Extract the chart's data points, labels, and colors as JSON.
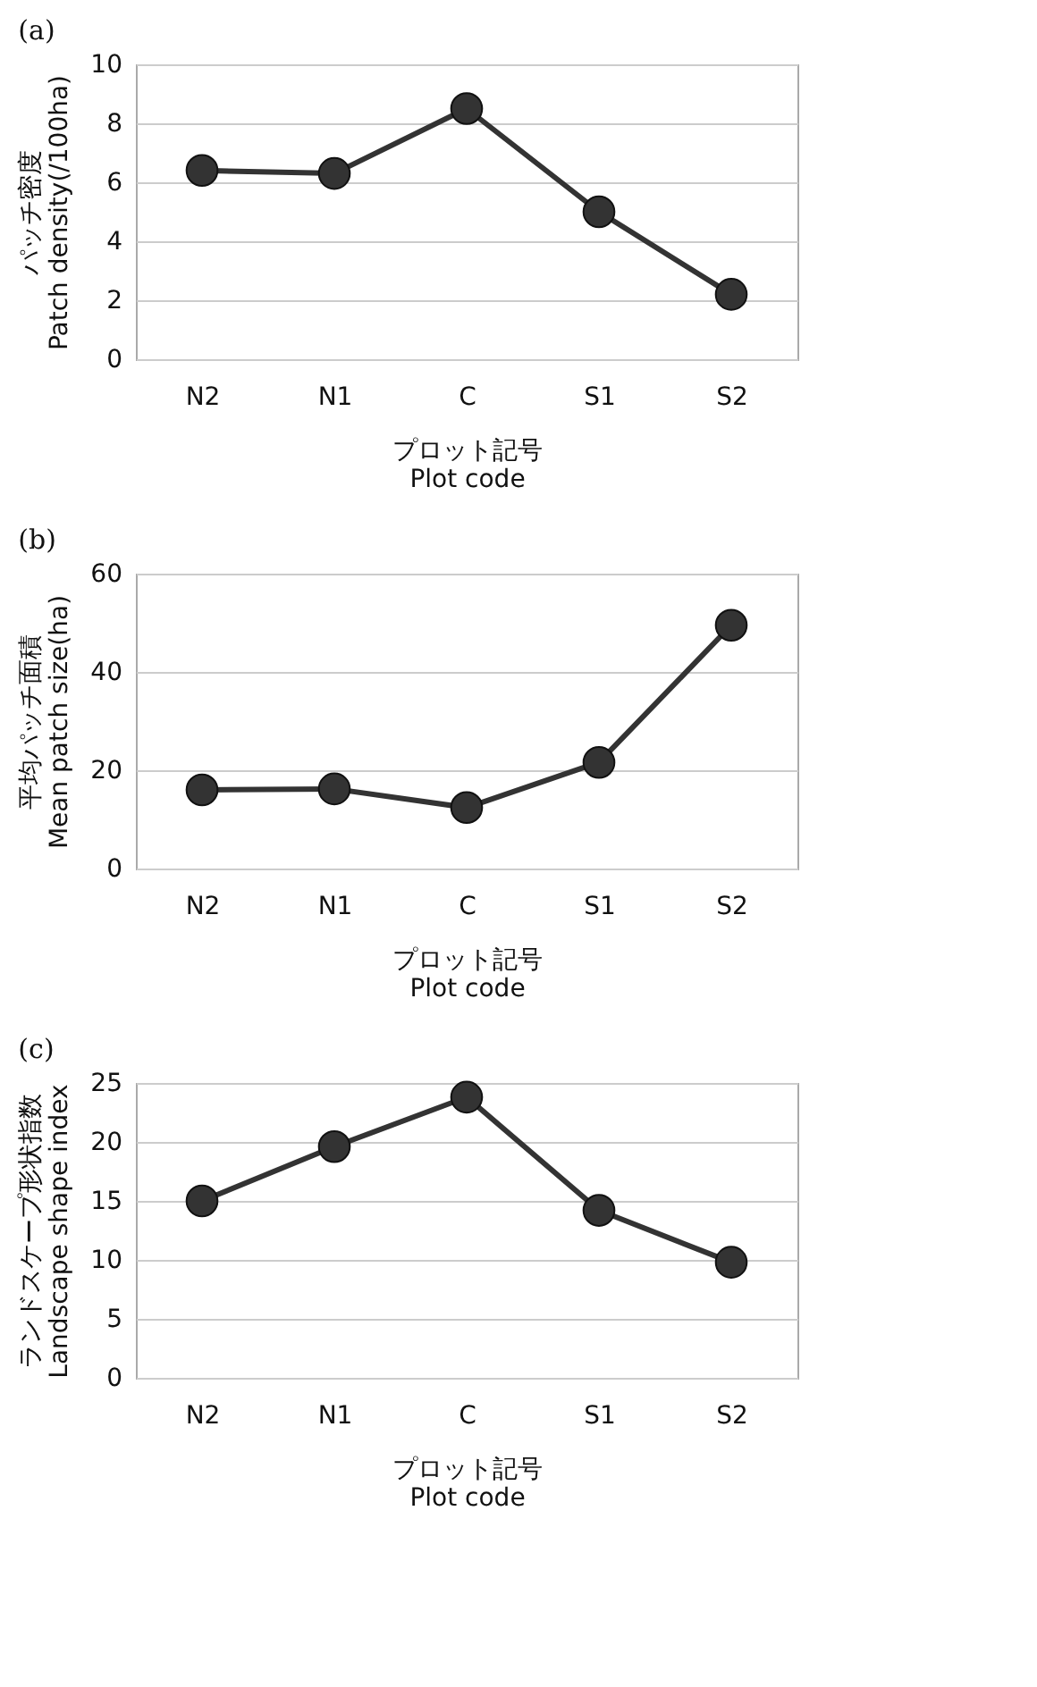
{
  "chart_data": [
    {
      "type": "line",
      "title": "(a)",
      "xlabel": "プロット記号\nPlot code",
      "ylabel": "パッチ密度\nPatch density(/100ha)",
      "categories": [
        "N2",
        "N1",
        "C",
        "S1",
        "S2"
      ],
      "series": [
        {
          "color": "#333333",
          "values": [
            6.4,
            6.3,
            8.5,
            5.0,
            2.2
          ]
        }
      ],
      "ylim": [
        0,
        10
      ],
      "yticks": [
        0,
        2,
        4,
        6,
        8,
        10
      ],
      "grid": "y",
      "marker": "circle",
      "line_style": "solid"
    },
    {
      "type": "line",
      "title": "(b)",
      "xlabel": "プロット記号\nPlot code",
      "ylabel": "平均パッチ面積\nMean patch size(ha)",
      "categories": [
        "N2",
        "N1",
        "C",
        "S1",
        "S2"
      ],
      "series": [
        {
          "color": "#333333",
          "values": [
            16,
            16.2,
            12.4,
            21.6,
            49.5
          ]
        }
      ],
      "ylim": [
        0,
        60
      ],
      "yticks": [
        0,
        20,
        40,
        60
      ],
      "grid": "y",
      "marker": "circle",
      "line_style": "solid"
    },
    {
      "type": "line",
      "title": "(c)",
      "xlabel": "プロット記号\nPlot code",
      "ylabel": "ランドスケープ形状指数\nLandscape shape index",
      "categories": [
        "N2",
        "N1",
        "C",
        "S1",
        "S2"
      ],
      "series": [
        {
          "color": "#333333",
          "values": [
            15.0,
            19.6,
            23.8,
            14.2,
            9.8
          ]
        }
      ],
      "ylim": [
        0,
        25
      ],
      "yticks": [
        0,
        5,
        10,
        15,
        20,
        25
      ],
      "grid": "y",
      "marker": "circle",
      "line_style": "solid"
    }
  ]
}
